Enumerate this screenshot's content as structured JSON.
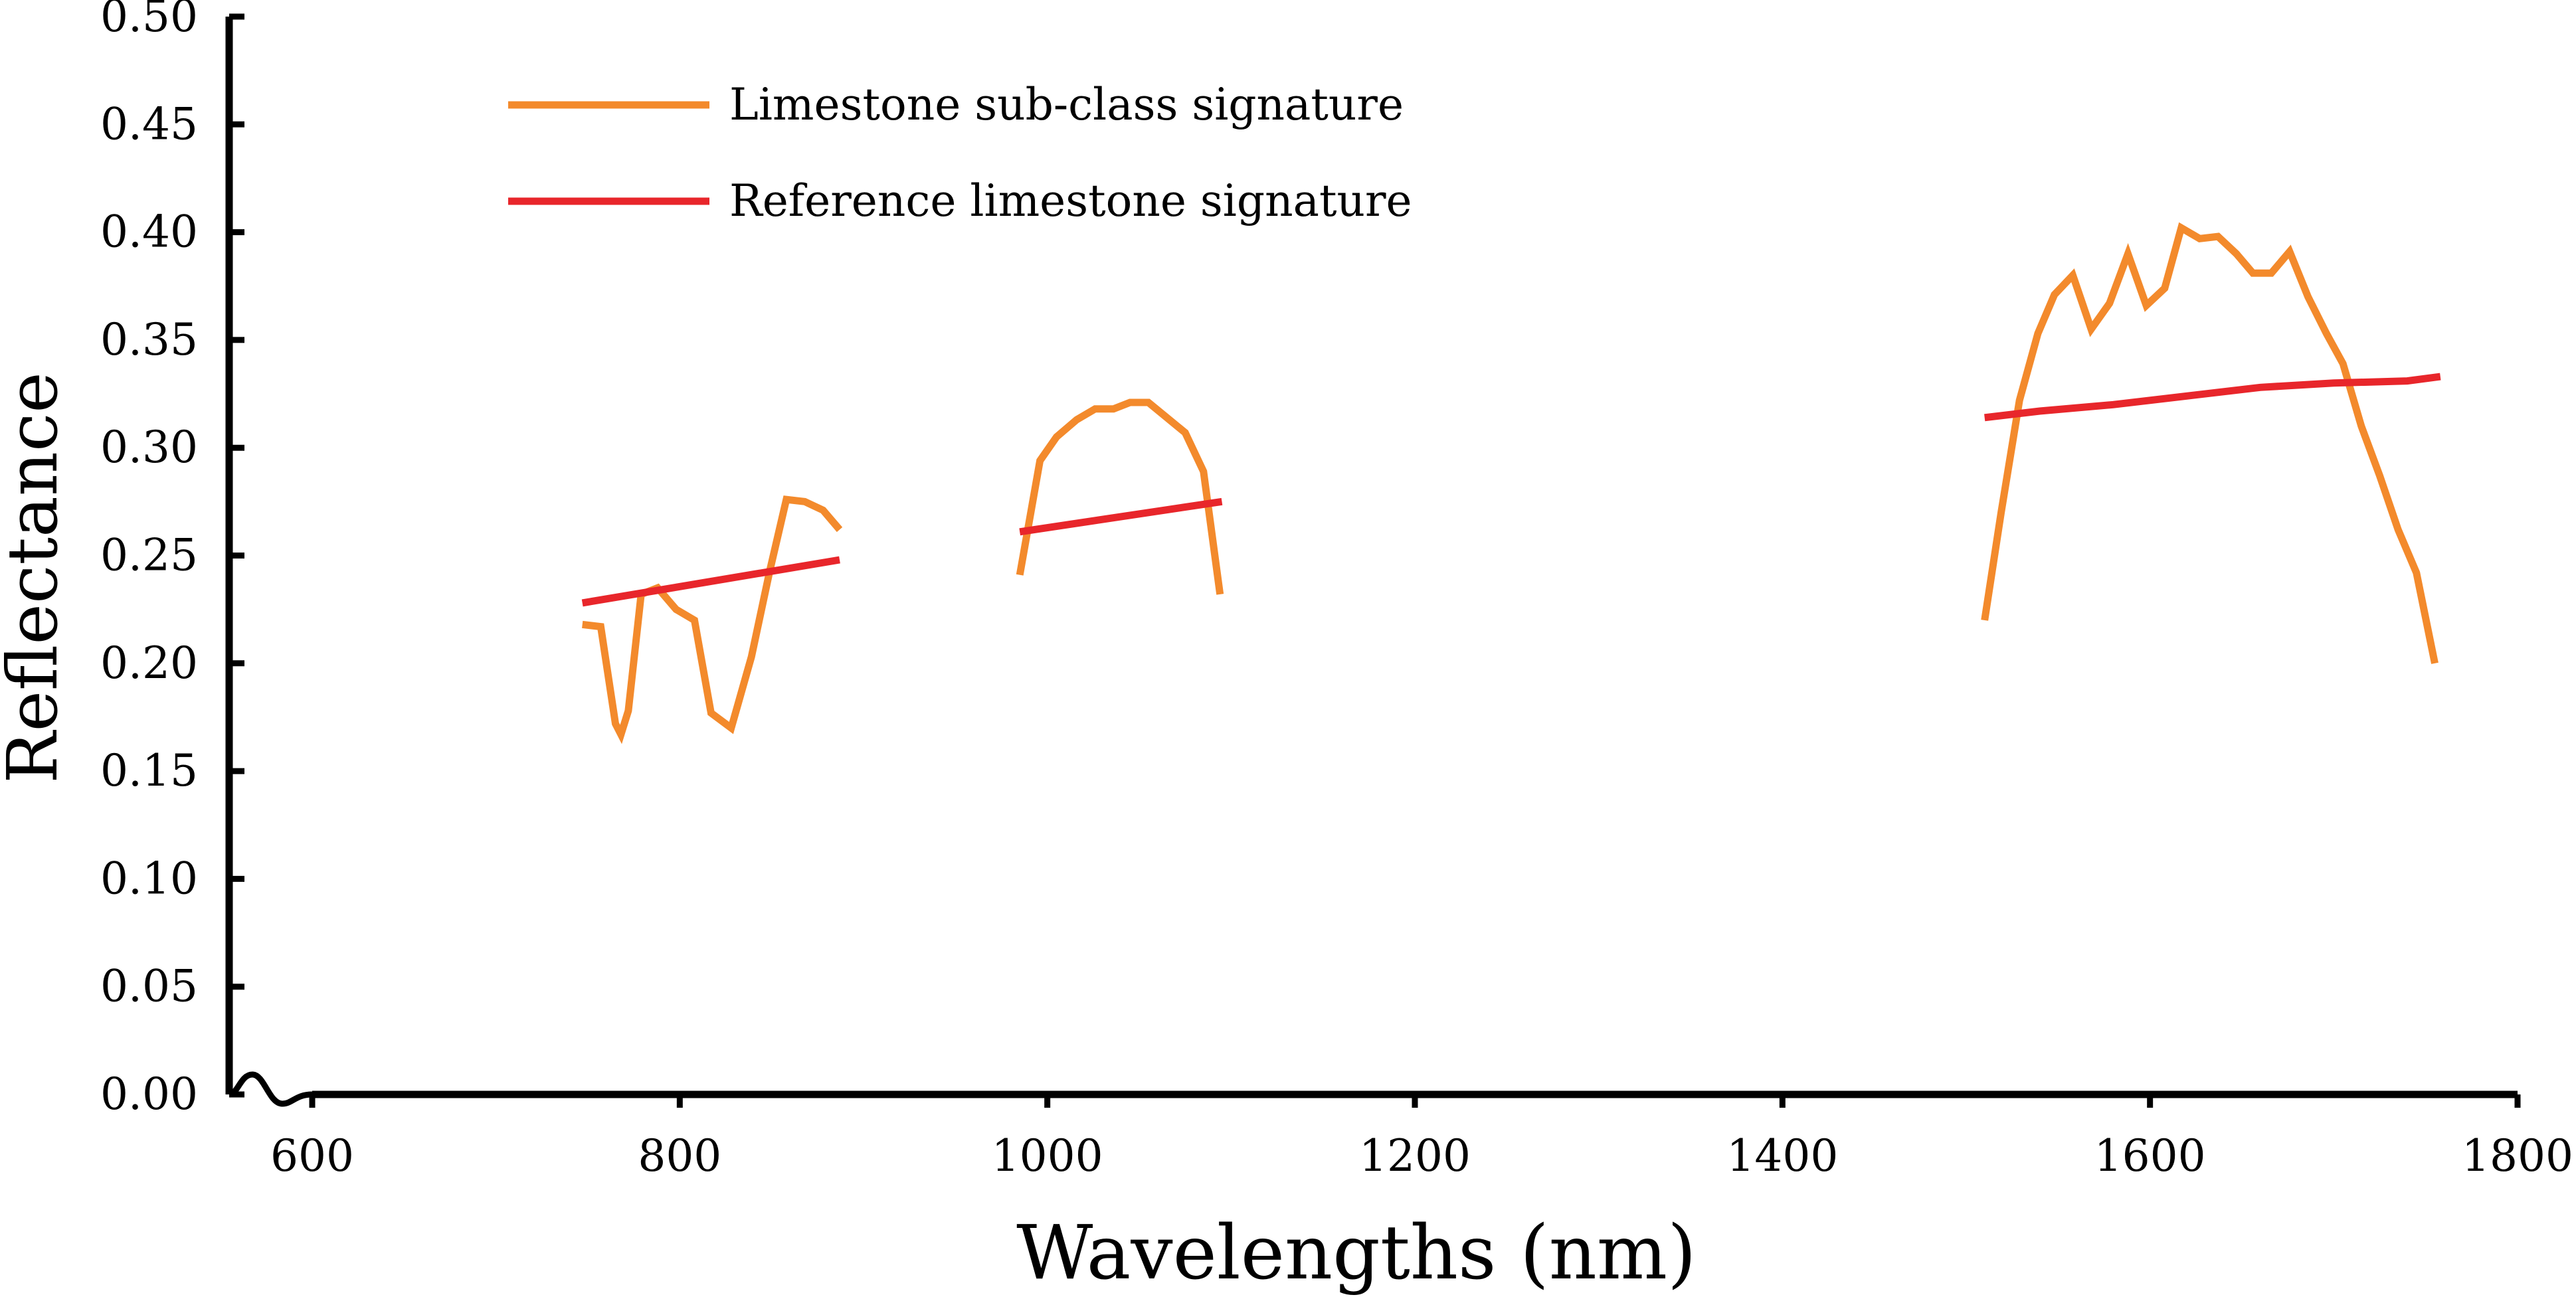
{
  "chart_data": {
    "type": "line",
    "title": "",
    "xlabel": "Wavelengths (nm)",
    "ylabel": "Reflectance",
    "xlim": [
      600,
      1800
    ],
    "ylim": [
      0,
      0.5
    ],
    "x_ticks": [
      "600",
      "800",
      "1000",
      "1200",
      "1400",
      "1600",
      "1800"
    ],
    "y_ticks": [
      "0.00",
      "0.05",
      "0.10",
      "0.15",
      "0.20",
      "0.25",
      "0.30",
      "0.35",
      "0.40",
      "0.45",
      "0.50"
    ],
    "legend_position": "top-left",
    "grid": false,
    "axis_break": true,
    "series": [
      {
        "name": "Limestone sub-class signature",
        "color": "#f38a2c",
        "segments": [
          [
            [
              747,
              0.218
            ],
            [
              757,
              0.217
            ],
            [
              765,
              0.172
            ],
            [
              768,
              0.167
            ],
            [
              772,
              0.178
            ],
            [
              779,
              0.232
            ],
            [
              788,
              0.235
            ],
            [
              798,
              0.225
            ],
            [
              808,
              0.22
            ],
            [
              817,
              0.177
            ],
            [
              828,
              0.17
            ],
            [
              839,
              0.203
            ],
            [
              849,
              0.243
            ],
            [
              858,
              0.276
            ],
            [
              868,
              0.275
            ],
            [
              878,
              0.271
            ],
            [
              887,
              0.262
            ]
          ],
          [
            [
              985,
              0.241
            ],
            [
              996,
              0.294
            ],
            [
              1005,
              0.305
            ],
            [
              1016,
              0.313
            ],
            [
              1026,
              0.318
            ],
            [
              1036,
              0.318
            ],
            [
              1045,
              0.321
            ],
            [
              1055,
              0.321
            ],
            [
              1065,
              0.314
            ],
            [
              1075,
              0.307
            ],
            [
              1085,
              0.289
            ],
            [
              1094,
              0.232
            ]
          ],
          [
            [
              1510,
              0.22
            ],
            [
              1519,
              0.27
            ],
            [
              1529,
              0.322
            ],
            [
              1539,
              0.353
            ],
            [
              1548,
              0.371
            ],
            [
              1558,
              0.38
            ],
            [
              1568,
              0.355
            ],
            [
              1578,
              0.367
            ],
            [
              1588,
              0.39
            ],
            [
              1598,
              0.366
            ],
            [
              1608,
              0.374
            ],
            [
              1617,
              0.402
            ],
            [
              1627,
              0.397
            ],
            [
              1637,
              0.398
            ],
            [
              1647,
              0.39
            ],
            [
              1656,
              0.381
            ],
            [
              1666,
              0.381
            ],
            [
              1676,
              0.391
            ],
            [
              1686,
              0.37
            ],
            [
              1696,
              0.353
            ],
            [
              1705,
              0.339
            ],
            [
              1715,
              0.31
            ],
            [
              1725,
              0.287
            ],
            [
              1735,
              0.262
            ],
            [
              1745,
              0.242
            ],
            [
              1755,
              0.2
            ]
          ]
        ]
      },
      {
        "name": "Reference limestone signature",
        "color": "#e8262b",
        "segments": [
          [
            [
              747,
              0.228
            ],
            [
              887,
              0.248
            ]
          ],
          [
            [
              985,
              0.261
            ],
            [
              1095,
              0.275
            ]
          ],
          [
            [
              1510,
              0.314
            ],
            [
              1540,
              0.317
            ],
            [
              1580,
              0.32
            ],
            [
              1620,
              0.324
            ],
            [
              1660,
              0.328
            ],
            [
              1700,
              0.33
            ],
            [
              1740,
              0.331
            ],
            [
              1758,
              0.333
            ]
          ]
        ]
      }
    ]
  }
}
